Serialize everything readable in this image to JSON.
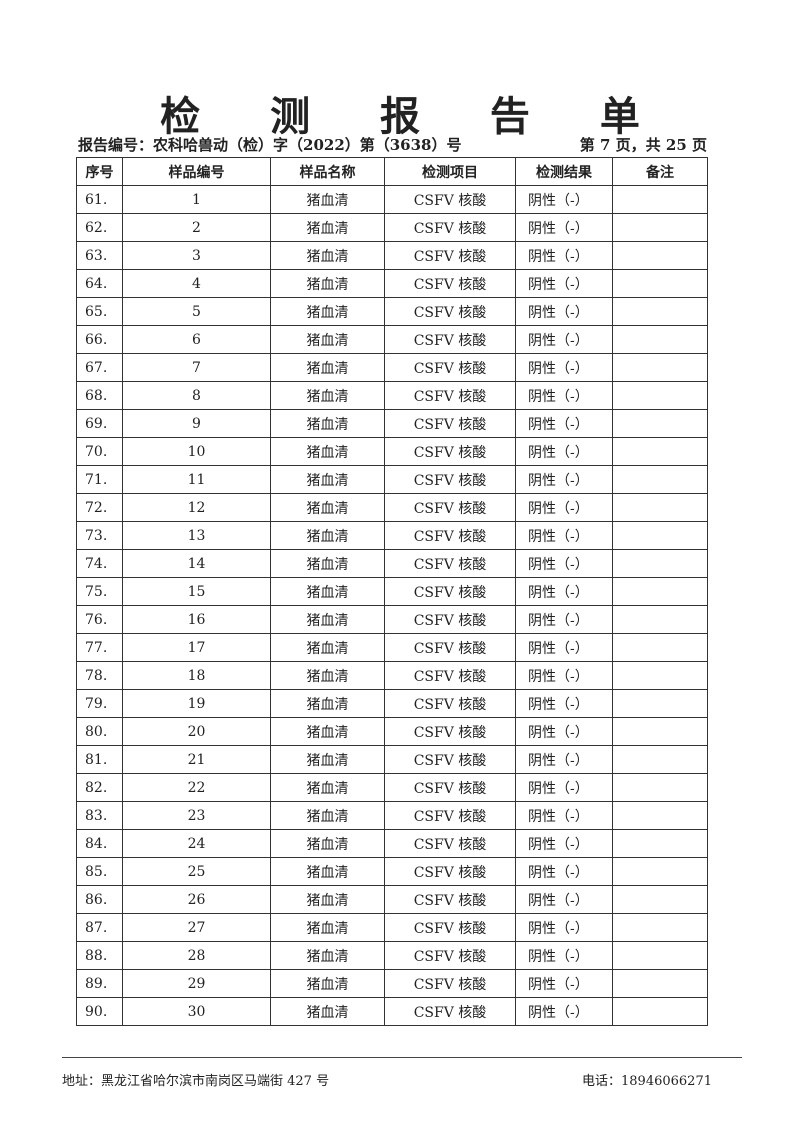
{
  "title": "检 测 报 告 单",
  "report_number": "报告编号：农科哈兽动（检）字（2022）第（3638）号",
  "page_info": "第 7 页，共 25 页",
  "table": {
    "headers": [
      "序号",
      "样品编号",
      "样品名称",
      "检测项目",
      "检测结果",
      "备注"
    ],
    "rows": [
      [
        "61.",
        "1",
        "猪血清",
        "CSFV 核酸",
        "阴性（-）",
        ""
      ],
      [
        "62.",
        "2",
        "猪血清",
        "CSFV 核酸",
        "阴性（-）",
        ""
      ],
      [
        "63.",
        "3",
        "猪血清",
        "CSFV 核酸",
        "阴性（-）",
        ""
      ],
      [
        "64.",
        "4",
        "猪血清",
        "CSFV 核酸",
        "阴性（-）",
        ""
      ],
      [
        "65.",
        "5",
        "猪血清",
        "CSFV 核酸",
        "阴性（-）",
        ""
      ],
      [
        "66.",
        "6",
        "猪血清",
        "CSFV 核酸",
        "阴性（-）",
        ""
      ],
      [
        "67.",
        "7",
        "猪血清",
        "CSFV 核酸",
        "阴性（-）",
        ""
      ],
      [
        "68.",
        "8",
        "猪血清",
        "CSFV 核酸",
        "阴性（-）",
        ""
      ],
      [
        "69.",
        "9",
        "猪血清",
        "CSFV 核酸",
        "阴性（-）",
        ""
      ],
      [
        "70.",
        "10",
        "猪血清",
        "CSFV 核酸",
        "阴性（-）",
        ""
      ],
      [
        "71.",
        "11",
        "猪血清",
        "CSFV 核酸",
        "阴性（-）",
        ""
      ],
      [
        "72.",
        "12",
        "猪血清",
        "CSFV 核酸",
        "阴性（-）",
        ""
      ],
      [
        "73.",
        "13",
        "猪血清",
        "CSFV 核酸",
        "阴性（-）",
        ""
      ],
      [
        "74.",
        "14",
        "猪血清",
        "CSFV 核酸",
        "阴性（-）",
        ""
      ],
      [
        "75.",
        "15",
        "猪血清",
        "CSFV 核酸",
        "阴性（-）",
        ""
      ],
      [
        "76.",
        "16",
        "猪血清",
        "CSFV 核酸",
        "阴性（-）",
        ""
      ],
      [
        "77.",
        "17",
        "猪血清",
        "CSFV 核酸",
        "阴性（-）",
        ""
      ],
      [
        "78.",
        "18",
        "猪血清",
        "CSFV 核酸",
        "阴性（-）",
        ""
      ],
      [
        "79.",
        "19",
        "猪血清",
        "CSFV 核酸",
        "阴性（-）",
        ""
      ],
      [
        "80.",
        "20",
        "猪血清",
        "CSFV 核酸",
        "阴性（-）",
        ""
      ],
      [
        "81.",
        "21",
        "猪血清",
        "CSFV 核酸",
        "阴性（-）",
        ""
      ],
      [
        "82.",
        "22",
        "猪血清",
        "CSFV 核酸",
        "阴性（-）",
        ""
      ],
      [
        "83.",
        "23",
        "猪血清",
        "CSFV 核酸",
        "阴性（-）",
        ""
      ],
      [
        "84.",
        "24",
        "猪血清",
        "CSFV 核酸",
        "阴性（-）",
        ""
      ],
      [
        "85.",
        "25",
        "猪血清",
        "CSFV 核酸",
        "阴性（-）",
        ""
      ],
      [
        "86.",
        "26",
        "猪血清",
        "CSFV 核酸",
        "阴性（-）",
        ""
      ],
      [
        "87.",
        "27",
        "猪血清",
        "CSFV 核酸",
        "阴性（-）",
        ""
      ],
      [
        "88.",
        "28",
        "猪血清",
        "CSFV 核酸",
        "阴性（-）",
        ""
      ],
      [
        "89.",
        "29",
        "猪血清",
        "CSFV 核酸",
        "阴性（-）",
        ""
      ],
      [
        "90.",
        "30",
        "猪血清",
        "CSFV 核酸",
        "阴性（-）",
        ""
      ]
    ]
  },
  "footer": {
    "address": "地址：黑龙江省哈尔滨市南岗区马端街 427 号",
    "phone": "电话：18946066271"
  }
}
